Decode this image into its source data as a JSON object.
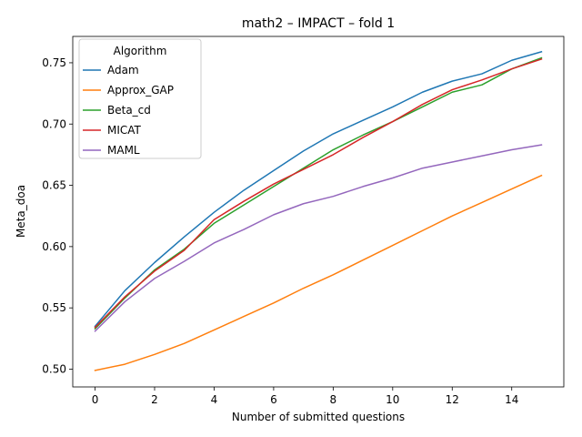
{
  "chart_data": {
    "type": "line",
    "title": "math2 – IMPACT – fold 1",
    "xlabel": "Number of submitted questions",
    "ylabel": "Meta_doa",
    "xlim": [
      -0.75,
      15.75
    ],
    "ylim": [
      0.4855,
      0.7715
    ],
    "xticks": [
      0,
      2,
      4,
      6,
      8,
      10,
      12,
      14
    ],
    "yticks": [
      0.5,
      0.55,
      0.6,
      0.65,
      0.7,
      0.75
    ],
    "ytick_labels": [
      "0.50",
      "0.55",
      "0.60",
      "0.65",
      "0.70",
      "0.75"
    ],
    "legend": {
      "title": "Algorithm",
      "placement": "top-left"
    },
    "grid": false,
    "x": [
      0,
      1,
      2,
      3,
      4,
      5,
      6,
      7,
      8,
      9,
      10,
      11,
      12,
      13,
      14,
      15
    ],
    "series": [
      {
        "name": "Adam",
        "color": "#1f77b4",
        "values": [
          0.535,
          0.564,
          0.587,
          0.608,
          0.628,
          0.646,
          0.662,
          0.678,
          0.692,
          0.703,
          0.714,
          0.726,
          0.735,
          0.741,
          0.752,
          0.759
        ]
      },
      {
        "name": "Approx_GAP",
        "color": "#ff7f0e",
        "values": [
          0.499,
          0.504,
          0.512,
          0.521,
          0.532,
          0.543,
          0.554,
          0.566,
          0.577,
          0.589,
          0.601,
          0.613,
          0.625,
          0.636,
          0.647,
          0.658
        ]
      },
      {
        "name": "Beta_cd",
        "color": "#2ca02c",
        "values": [
          0.533,
          0.558,
          0.581,
          0.598,
          0.619,
          0.634,
          0.649,
          0.664,
          0.679,
          0.691,
          0.702,
          0.714,
          0.726,
          0.732,
          0.745,
          0.754
        ]
      },
      {
        "name": "MICAT",
        "color": "#d62728",
        "values": [
          0.534,
          0.559,
          0.58,
          0.597,
          0.622,
          0.637,
          0.651,
          0.663,
          0.675,
          0.689,
          0.702,
          0.716,
          0.728,
          0.736,
          0.745,
          0.753
        ]
      },
      {
        "name": "MAML",
        "color": "#9467bd",
        "values": [
          0.531,
          0.555,
          0.574,
          0.588,
          0.603,
          0.614,
          0.626,
          0.635,
          0.641,
          0.649,
          0.656,
          0.664,
          0.669,
          0.674,
          0.679,
          0.683
        ]
      }
    ]
  }
}
